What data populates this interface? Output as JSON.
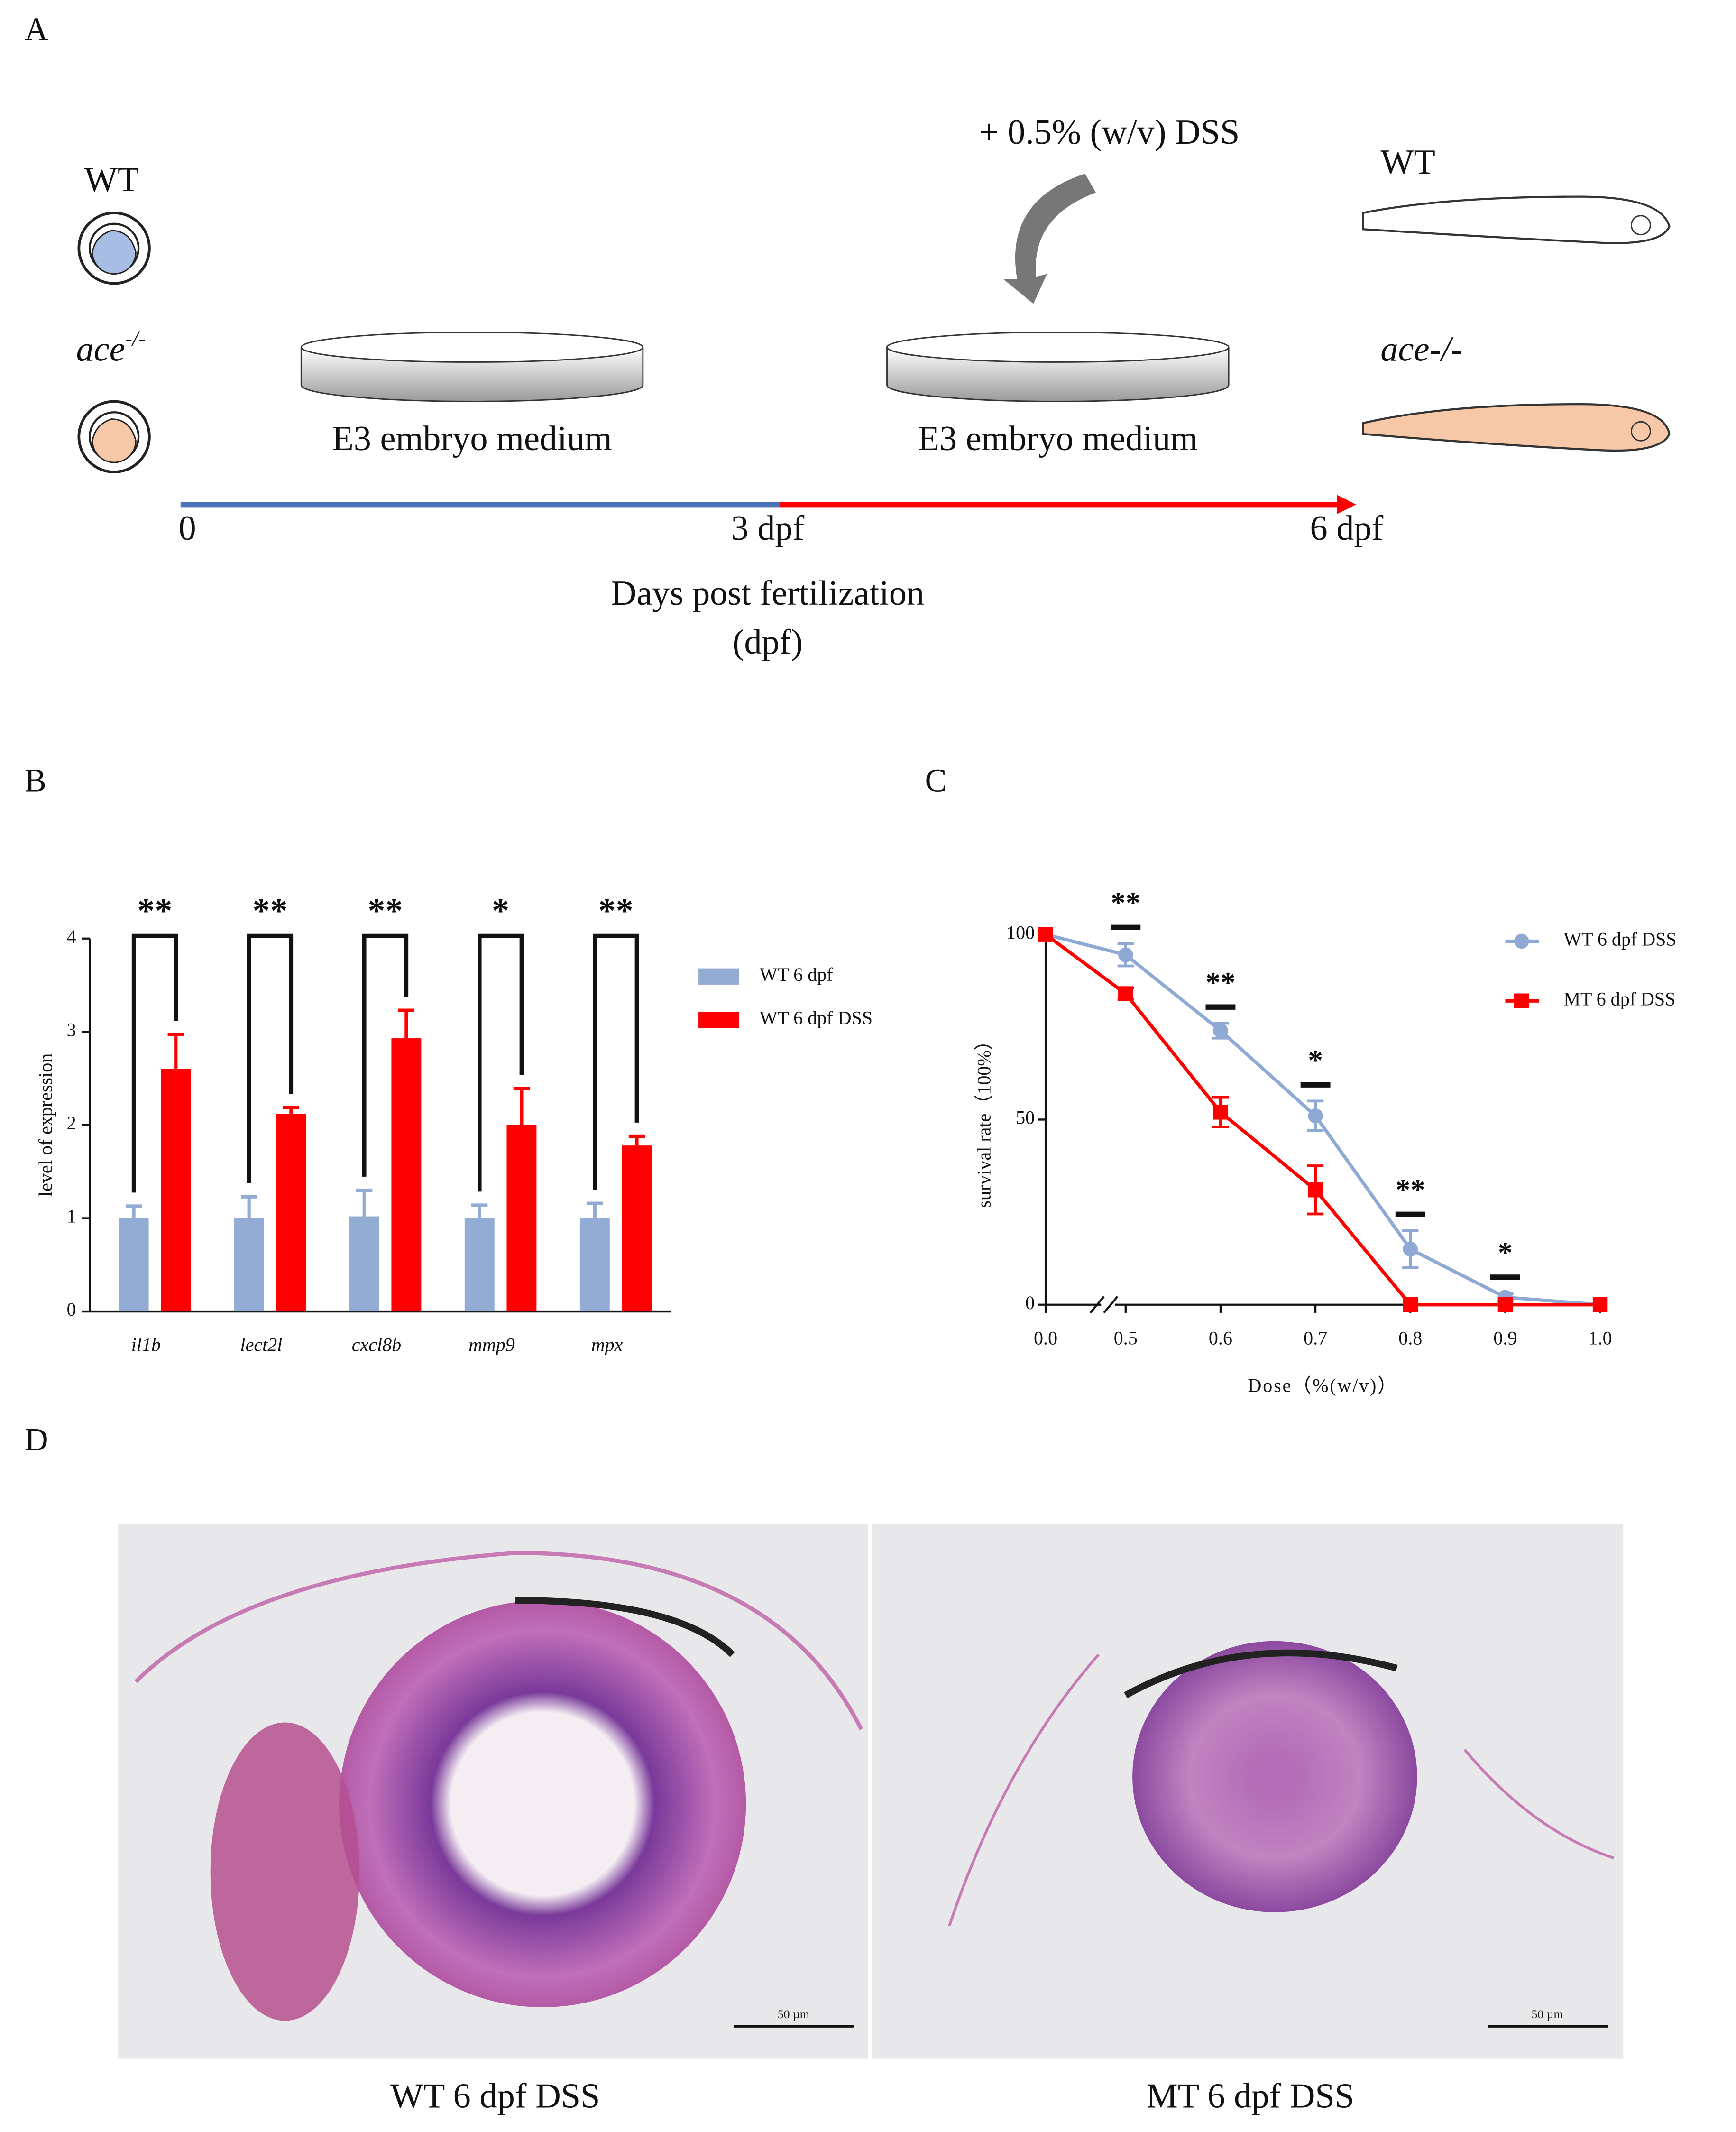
{
  "panel_labels": [
    "A",
    "B",
    "C",
    "D"
  ],
  "schematic": {
    "wt_label": "WT",
    "mutant_label": "ace",
    "mutant_superscript": "-/-",
    "dish_labels": [
      "E3 embryo medium",
      "E3 embryo medium"
    ],
    "treatment": "+ 0.5% (w/v) DSS",
    "larva_labels": [
      "WT",
      "ace-/-"
    ],
    "timeline_labels": [
      "0",
      "3 dpf",
      "6 dpf"
    ],
    "timeline_title": "Days post fertilization",
    "timeline_unit": "(dpf)"
  },
  "micrographs": {
    "scale_bars": [
      "50 µm",
      "50 µm"
    ],
    "captions": [
      "WT 6 dpf DSS",
      "MT 6 dpf DSS"
    ]
  },
  "chart_data": [
    {
      "type": "bar",
      "ylabel": "level of expression",
      "categories": [
        "il1b",
        "lect2l",
        "cxcl8b",
        "mmp9",
        "mpx"
      ],
      "series": [
        {
          "name": "WT 6 dpf",
          "color": "#93acd3",
          "values": [
            1,
            1,
            1.02,
            1,
            1
          ],
          "errors": [
            0.13,
            0.23,
            0.28,
            0.14,
            0.16
          ]
        },
        {
          "name": "WT 6 dpf DSS",
          "color": "#ff0000",
          "values": [
            2.6,
            2.12,
            2.93,
            2.0,
            1.78
          ],
          "errors": [
            0.37,
            0.07,
            0.3,
            0.39,
            0.1
          ]
        }
      ],
      "significance": [
        "**",
        "**",
        "**",
        "*",
        "**"
      ],
      "ylim": [
        0,
        4
      ],
      "yticks": [
        0,
        1,
        2,
        3,
        4
      ],
      "legend": "right"
    },
    {
      "type": "line",
      "xlabel": "Dose（%(w/v)）",
      "ylabel": "survival rate（100%）",
      "x": [
        0,
        0.5,
        0.6,
        0.7,
        0.8,
        0.9,
        1
      ],
      "series": [
        {
          "name": "WT 6 dpf DSS",
          "color": "#8eaad4",
          "marker": "circle",
          "values": [
            100,
            94.5,
            74,
            51,
            15,
            2,
            0
          ],
          "errors": [
            0,
            3,
            2,
            4,
            5,
            1,
            0
          ]
        },
        {
          "name": "MT 6 dpf DSS",
          "color": "#ff0000",
          "marker": "square",
          "values": [
            100,
            84,
            52,
            31,
            0,
            0,
            0
          ],
          "errors": [
            0,
            1.5,
            4,
            6.5,
            0,
            0,
            0
          ]
        }
      ],
      "annotations": [
        {
          "x": 0.5,
          "label": "**"
        },
        {
          "x": 0.6,
          "label": "**"
        },
        {
          "x": 0.7,
          "label": "*"
        },
        {
          "x": 0.8,
          "label": "**"
        },
        {
          "x": 0.9,
          "label": "*"
        }
      ],
      "xlim": [
        0,
        1
      ],
      "x_break": [
        0,
        0.5
      ],
      "xticks": [
        {
          "value": 0,
          "label": "0.0"
        },
        {
          "value": 0.5,
          "label": "0.5"
        },
        {
          "value": 0.6,
          "label": "0.6"
        },
        {
          "value": 0.7,
          "label": "0.7"
        },
        {
          "value": 0.8,
          "label": "0.8"
        },
        {
          "value": 0.9,
          "label": "0.9"
        },
        {
          "value": 1,
          "label": "1.0"
        }
      ],
      "ylim": [
        0,
        100
      ],
      "yticks": [
        0,
        50,
        100
      ],
      "legend": "upper right"
    }
  ]
}
